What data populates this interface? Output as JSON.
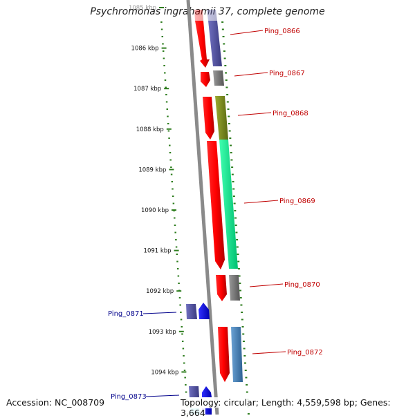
{
  "title": "Psychromonas ingrahamii 37, complete genome",
  "footer": {
    "accession": "Accession: NC_008709",
    "summary": "Topology: circular; Length: 4,559,598 bp; Genes: 3,664"
  },
  "scale_labels": [
    "1085 kbp",
    "1086 kbp",
    "1087 kbp",
    "1088 kbp",
    "1089 kbp",
    "1090 kbp",
    "1091 kbp",
    "1092 kbp",
    "1093 kbp",
    "1094 kbp"
  ],
  "genes": [
    {
      "name": "Ping_0866",
      "strand": "+",
      "color": "#c00000"
    },
    {
      "name": "Ping_0867",
      "strand": "+",
      "color": "#c00000"
    },
    {
      "name": "Ping_0868",
      "strand": "+",
      "color": "#c00000"
    },
    {
      "name": "Ping_0869",
      "strand": "+",
      "color": "#c00000"
    },
    {
      "name": "Ping_0870",
      "strand": "+",
      "color": "#c00000"
    },
    {
      "name": "Ping_0871",
      "strand": "-",
      "color": "#00008b"
    },
    {
      "name": "Ping_0872",
      "strand": "+",
      "color": "#c00000"
    },
    {
      "name": "Ping_0873",
      "strand": "-",
      "color": "#00008b"
    }
  ],
  "colors": {
    "forward_gene": "#ff0000",
    "reverse_gene": "#0000ff",
    "backbone": "#808080",
    "gc_ticks": "#2e7d1e",
    "feature_olive": "#7a8a1a",
    "feature_green": "#00ee99",
    "feature_grey": "#707070",
    "feature_slate": "#5a5aa0",
    "feature_steel": "#4682b4",
    "feature_cyan": "#00e5ee"
  }
}
